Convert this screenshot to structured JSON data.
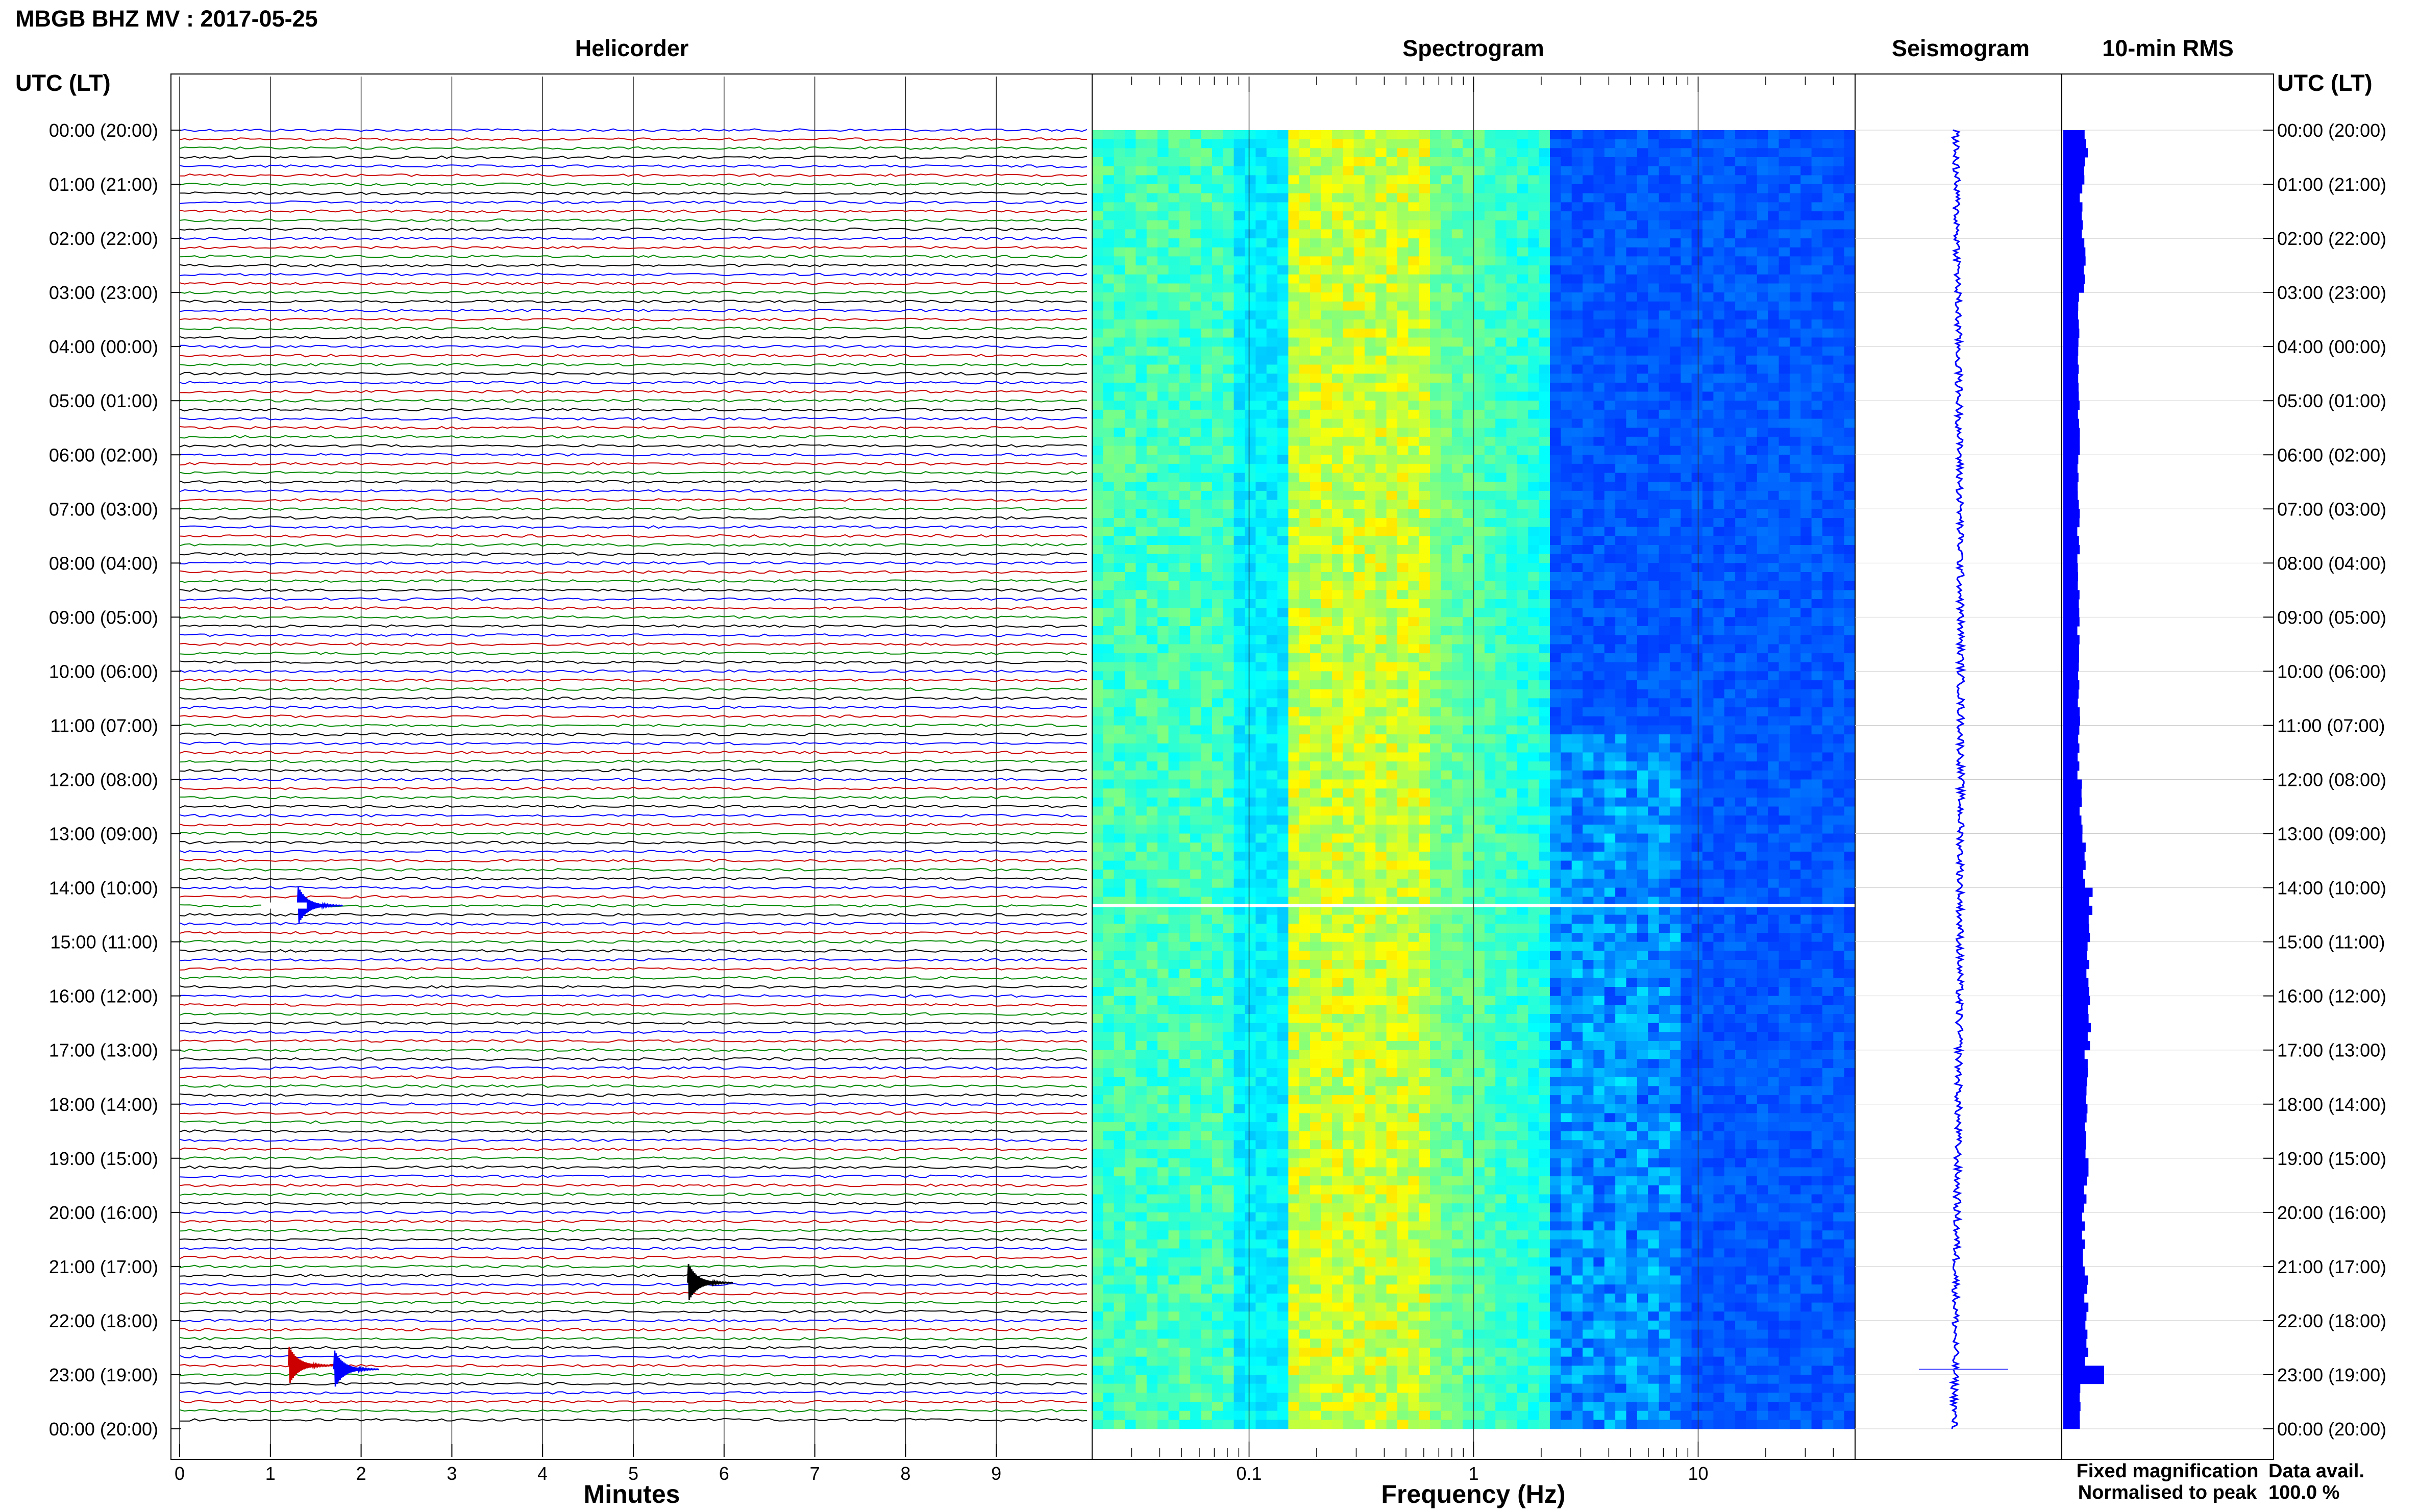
{
  "figure": {
    "title": "MBGB BHZ MV : 2017-05-25",
    "time_axis_label": "UTC (LT)",
    "panels": {
      "helicorder": "Helicorder",
      "spectrogram": "Spectrogram",
      "seismogram": "Seismogram",
      "rms": "10-min RMS"
    },
    "legend": {
      "fixed": "Fixed magnification",
      "normalised": "Normalised to peak",
      "fixed_color": "#0000ff",
      "normalised_color": "#ff0000"
    },
    "data_avail": {
      "label": "Data avail.",
      "value": "100.0 %"
    }
  },
  "chart_data": [
    {
      "type": "line",
      "title": "Helicorder",
      "xlabel": "Minutes",
      "x_ticks": [
        "0",
        "1",
        "2",
        "3",
        "4",
        "5",
        "6",
        "7",
        "8",
        "9"
      ],
      "xlim": [
        0,
        10
      ],
      "trace_colors": [
        "#0000ff",
        "#cc0000",
        "#008800",
        "#000000"
      ],
      "traces_per_hour": 6,
      "hours": 24,
      "time_labels": [
        "00:00 (20:00)",
        "01:00 (21:00)",
        "02:00 (22:00)",
        "03:00 (23:00)",
        "04:00 (00:00)",
        "05:00 (01:00)",
        "06:00 (02:00)",
        "07:00 (03:00)",
        "08:00 (04:00)",
        "09:00 (05:00)",
        "10:00 (06:00)",
        "11:00 (07:00)",
        "12:00 (08:00)",
        "13:00 (09:00)",
        "14:00 (10:00)",
        "15:00 (11:00)",
        "16:00 (12:00)",
        "17:00 (13:00)",
        "18:00 (14:00)",
        "19:00 (15:00)",
        "20:00 (16:00)",
        "21:00 (17:00)",
        "22:00 (18:00)",
        "23:00 (19:00)",
        "00:00 (20:00)"
      ],
      "events": [
        {
          "hour": 22.83,
          "minute": 1.2,
          "color": "#cc0000"
        },
        {
          "hour": 22.9,
          "minute": 1.7,
          "color": "#0000ff"
        },
        {
          "hour": 21.3,
          "minute": 5.6,
          "color": "#000000"
        },
        {
          "hour": 14.33,
          "minute": 1.3,
          "color": "#0000ff"
        }
      ],
      "gap": {
        "hour": 14.33,
        "minute_start": 0.9,
        "minute_end": 1.4
      }
    },
    {
      "type": "heatmap",
      "title": "Spectrogram",
      "xlabel": "Frequency (Hz)",
      "x_scale": "log",
      "xlim": [
        0.02,
        50
      ],
      "x_ticks": [
        "0.1",
        "1",
        "10"
      ],
      "colormap": "jet",
      "gap_hour": 14.33
    },
    {
      "type": "line",
      "title": "Seismogram",
      "spike_hour": 22.9
    },
    {
      "type": "bar",
      "title": "10-min RMS",
      "bins_per_hour": 6,
      "hourly_level": [
        0.45,
        0.35,
        0.4,
        0.3,
        0.3,
        0.3,
        0.3,
        0.3,
        0.3,
        0.3,
        0.3,
        0.3,
        0.35,
        0.4,
        0.55,
        0.5,
        0.5,
        0.45,
        0.45,
        0.45,
        0.4,
        0.45,
        0.45,
        0.35
      ],
      "peak": {
        "hour": 22.9,
        "level": 0.8
      }
    }
  ]
}
